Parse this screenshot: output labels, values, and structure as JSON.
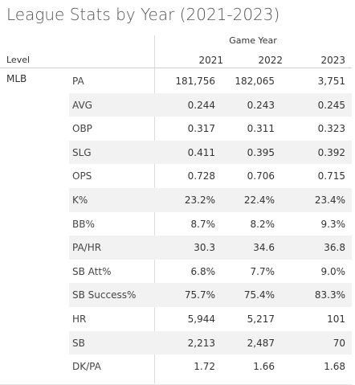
{
  "title": "League Stats by Year (2021-2023)",
  "column_group_label": "Game Year",
  "row_header_label": "Level",
  "level": "MLB",
  "years": [
    "2021",
    "2022",
    "2023"
  ],
  "rows": [
    {
      "metric": "PA",
      "values": [
        "181,756",
        "182,065",
        "3,751"
      ]
    },
    {
      "metric": "AVG",
      "values": [
        "0.244",
        "0.243",
        "0.245"
      ]
    },
    {
      "metric": "OBP",
      "values": [
        "0.317",
        "0.311",
        "0.323"
      ]
    },
    {
      "metric": "SLG",
      "values": [
        "0.411",
        "0.395",
        "0.392"
      ]
    },
    {
      "metric": "OPS",
      "values": [
        "0.728",
        "0.706",
        "0.715"
      ]
    },
    {
      "metric": "K%",
      "values": [
        "23.2%",
        "22.4%",
        "23.4%"
      ]
    },
    {
      "metric": "BB%",
      "values": [
        "8.7%",
        "8.2%",
        "9.3%"
      ]
    },
    {
      "metric": "PA/HR",
      "values": [
        "30.3",
        "34.6",
        "36.8"
      ]
    },
    {
      "metric": "SB Att%",
      "values": [
        "6.8%",
        "7.7%",
        "9.0%"
      ]
    },
    {
      "metric": "SB Success%",
      "values": [
        "75.7%",
        "75.4%",
        "83.3%"
      ]
    },
    {
      "metric": "HR",
      "values": [
        "5,944",
        "5,217",
        "101"
      ]
    },
    {
      "metric": "SB",
      "values": [
        "2,213",
        "2,487",
        "70"
      ]
    },
    {
      "metric": "DK/PA",
      "values": [
        "1.72",
        "1.66",
        "1.68"
      ]
    }
  ],
  "colors": {
    "shaded_row": "#f2f2f2",
    "divider": "#dcdcdc",
    "text": "#333333"
  }
}
